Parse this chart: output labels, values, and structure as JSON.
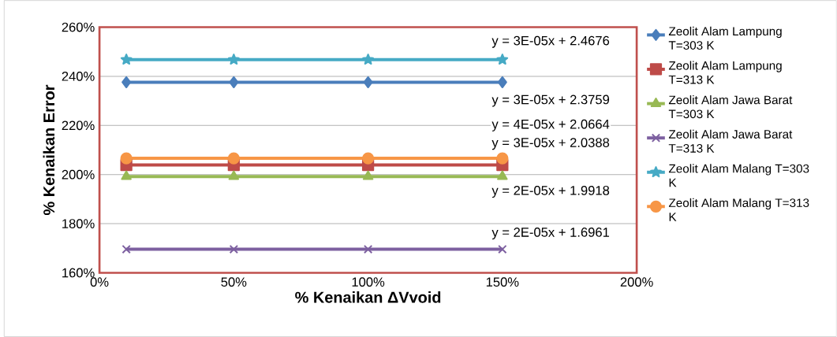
{
  "chart_data": {
    "type": "line",
    "xlabel": "% Kenaikan ΔVvoid",
    "ylabel": "% Kenaikan Error",
    "x": [
      10,
      50,
      100,
      150
    ],
    "xlim": [
      0,
      200
    ],
    "xticks": [
      {
        "value": 0,
        "label": "0%"
      },
      {
        "value": 50,
        "label": "50%"
      },
      {
        "value": 100,
        "label": "100%"
      },
      {
        "value": 150,
        "label": "150%"
      },
      {
        "value": 200,
        "label": "200%"
      }
    ],
    "ylim": [
      160,
      260
    ],
    "yticks": [
      {
        "value": 160,
        "label": "160%"
      },
      {
        "value": 180,
        "label": "180%"
      },
      {
        "value": 200,
        "label": "200%"
      },
      {
        "value": 220,
        "label": "220%"
      },
      {
        "value": 240,
        "label": "240%"
      },
      {
        "value": 260,
        "label": "260%"
      }
    ],
    "grid": "y",
    "legend": "right",
    "line_style": "solid",
    "series": [
      {
        "name": "Zeolit Alam Lampung T=303 K",
        "color": "#4a7ebb",
        "marker": "diamond",
        "values": [
          237.6,
          237.6,
          237.6,
          237.6
        ]
      },
      {
        "name": "Zeolit Alam Lampung T=313 K",
        "color": "#be4b48",
        "marker": "square",
        "values": [
          203.9,
          203.9,
          203.9,
          203.9
        ]
      },
      {
        "name": "Zeolit Alam Jawa Barat T=303 K",
        "color": "#98b954",
        "marker": "triangle",
        "values": [
          199.2,
          199.2,
          199.2,
          199.2
        ]
      },
      {
        "name": "Zeolit Alam Jawa Barat T=313 K",
        "color": "#7d60a0",
        "marker": "cross",
        "values": [
          169.6,
          169.6,
          169.6,
          169.6
        ]
      },
      {
        "name": "Zeolit Alam Malang T=303 K",
        "color": "#46aac5",
        "marker": "star",
        "values": [
          246.8,
          246.8,
          246.8,
          246.8
        ]
      },
      {
        "name": "Zeolit Alam Malang T=313 K",
        "color": "#f79646",
        "marker": "circle",
        "values": [
          206.6,
          206.6,
          206.6,
          206.6
        ]
      }
    ],
    "annotations": [
      "y = 3E-05x + 2.4676",
      "y = 3E-05x + 2.3759",
      "y = 4E-05x + 2.0664",
      "y = 3E-05x + 2.0388",
      "y = 2E-05x + 1.9918",
      "y = 2E-05x + 1.6961"
    ]
  }
}
